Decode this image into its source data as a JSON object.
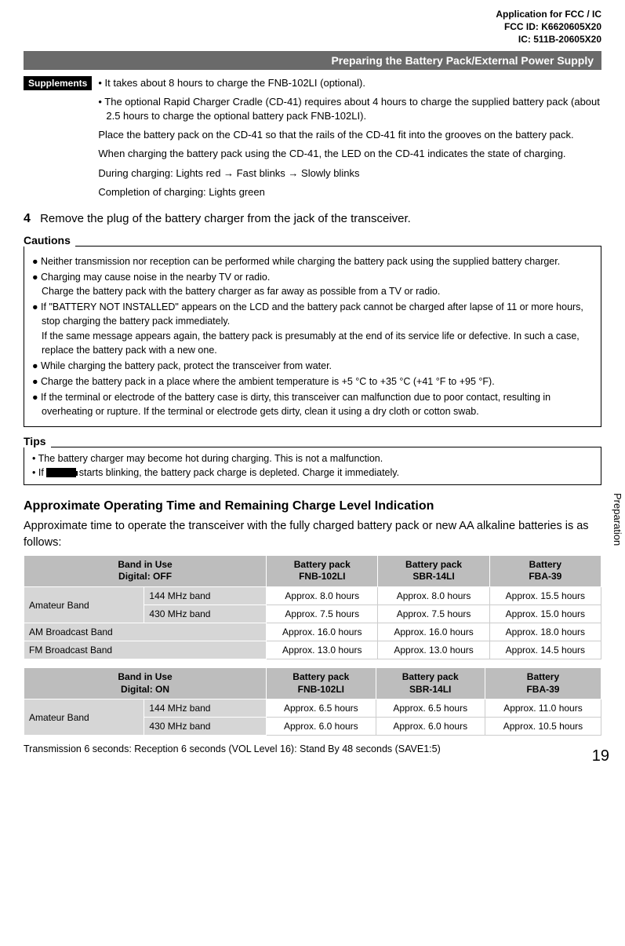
{
  "header": {
    "line1": "Application for FCC / IC",
    "line2": "FCC ID: K6620605X20",
    "line3": "IC: 511B-20605X20"
  },
  "title_bar": "Preparing the Battery Pack/External Power Supply",
  "supplements": {
    "label": "Supplements",
    "b1": "• It takes about 8 hours to charge the FNB-102LI (optional).",
    "b2": "• The optional Rapid Charger Cradle (CD-41) requires about 4 hours to charge the supplied battery pack (about 2.5 hours to charge the optional battery pack FNB-102LI).",
    "p1": "Place the battery pack on the CD-41 so that the rails of the CD-41 fit into the grooves on the battery pack.",
    "p2": "When charging the battery pack using the CD-41, the LED on the CD-41 indicates the state of charging.",
    "p3": "During charging: Lights red → Fast blinks → Slowly blinks",
    "p4": "Completion of charging: Lights green"
  },
  "step4": {
    "num": "4",
    "text": "Remove the plug of the battery charger from the jack of the transceiver."
  },
  "cautions": {
    "label": "Cautions",
    "items": [
      "Neither transmission nor reception can be performed while charging the battery pack using the supplied battery charger.",
      "Charging may cause noise in the nearby TV or radio.\nCharge the battery pack with the battery charger as far away as possible from a TV or radio.",
      "If \"BATTERY NOT INSTALLED\" appears on the LCD and the battery pack cannot be charged after lapse of 11 or more hours, stop charging the battery pack immediately.\nIf the same message appears again, the battery pack is presumably at the end of its service life or defective. In such a case, replace the battery pack with a new one.",
      "While charging the battery pack, protect the transceiver from water.",
      "Charge the battery pack in a place where the ambient temperature is +5 °C to +35 °C (+41 °F to +95 °F).",
      "If the terminal or electrode of the battery case is dirty, this transceiver can malfunction due to poor contact, resulting in overheating or rupture. If the terminal or electrode gets dirty, clean it using a dry cloth or cotton swab."
    ]
  },
  "tips": {
    "label": "Tips",
    "t1": "• The battery charger may become hot during charging. This is not a malfunction.",
    "t2a": "• If ",
    "t2b": " starts blinking, the battery pack charge is depleted. Charge it immediately."
  },
  "section_heading": "Approximate Operating Time and Remaining Charge Level Indication",
  "intro": "Approximate time to operate the transceiver with the fully charged battery pack or new AA alkaline batteries is as follows:",
  "tableA": {
    "headers": {
      "c1a": "Band in Use",
      "c1b": "Digital: OFF",
      "c2a": "Battery pack",
      "c2b": "FNB-102LI",
      "c3a": "Battery pack",
      "c3b": "SBR-14LI",
      "c4a": "Battery",
      "c4b": "FBA-39"
    },
    "rows": [
      {
        "g": "Amateur Band",
        "sub": "144 MHz band",
        "v": [
          "Approx. 8.0 hours",
          "Approx. 8.0 hours",
          "Approx. 15.5 hours"
        ]
      },
      {
        "g": "",
        "sub": "430 MHz band",
        "v": [
          "Approx. 7.5 hours",
          "Approx. 7.5 hours",
          "Approx. 15.0 hours"
        ]
      },
      {
        "g": "AM Broadcast Band",
        "sub": "",
        "v": [
          "Approx. 16.0 hours",
          "Approx. 16.0 hours",
          "Approx. 18.0 hours"
        ]
      },
      {
        "g": "FM Broadcast Band",
        "sub": "",
        "v": [
          "Approx. 13.0 hours",
          "Approx. 13.0 hours",
          "Approx. 14.5 hours"
        ]
      }
    ]
  },
  "tableB": {
    "headers": {
      "c1a": "Band in Use",
      "c1b": "Digital: ON",
      "c2a": "Battery pack",
      "c2b": "FNB-102LI",
      "c3a": "Battery pack",
      "c3b": "SBR-14LI",
      "c4a": "Battery",
      "c4b": "FBA-39"
    },
    "rows": [
      {
        "g": "Amateur Band",
        "sub": "144 MHz band",
        "v": [
          "Approx. 6.5 hours",
          "Approx. 6.5 hours",
          "Approx. 11.0 hours"
        ]
      },
      {
        "g": "",
        "sub": "430 MHz band",
        "v": [
          "Approx. 6.0 hours",
          "Approx. 6.0 hours",
          "Approx. 10.5 hours"
        ]
      }
    ]
  },
  "footnote": "Transmission 6 seconds: Reception 6 seconds (VOL Level 16): Stand By 48 seconds (SAVE1:5)",
  "side_tab": "Preparation",
  "page_num": "19"
}
